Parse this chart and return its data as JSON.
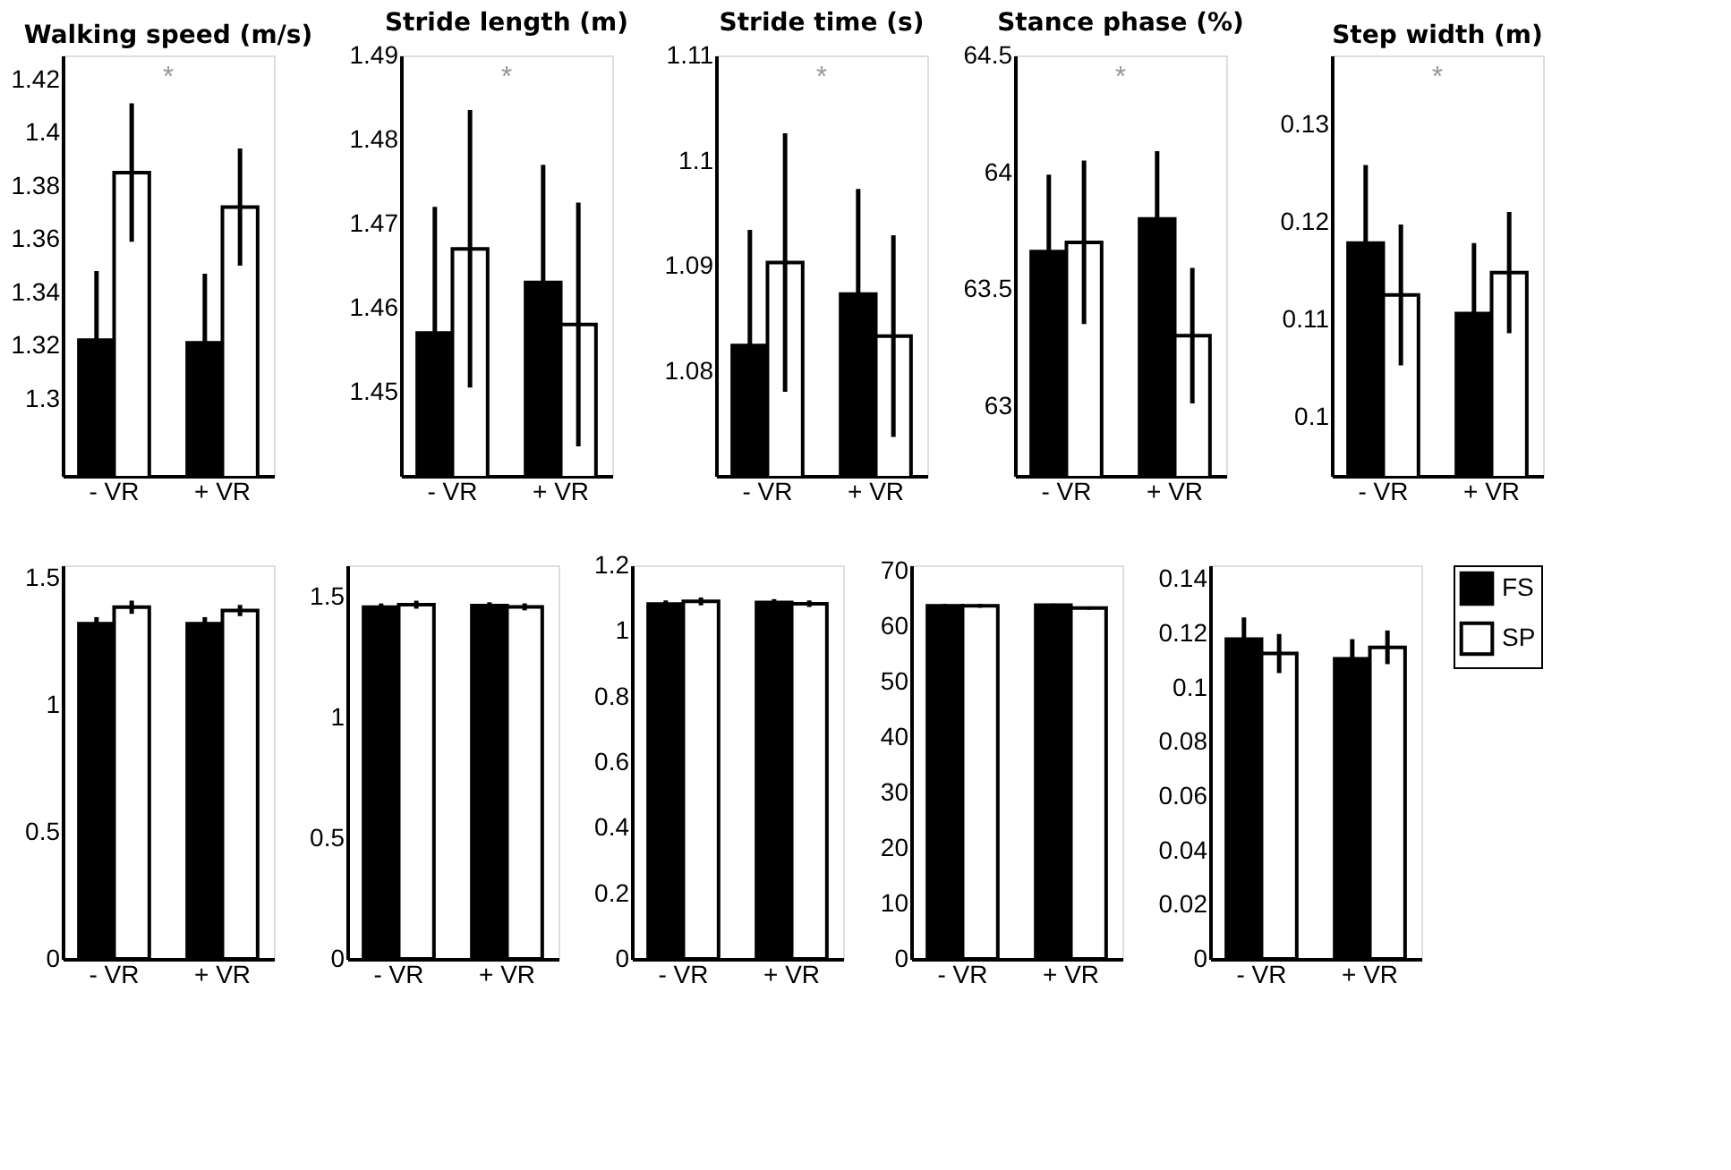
{
  "chart_data": [
    {
      "type": "bar",
      "title": "Walking speed (m/s)",
      "categories": [
        "- VR",
        "+ VR"
      ],
      "annotations": [
        "*"
      ],
      "ylim": [
        1.271,
        1.429
      ],
      "yticks": [
        1.3,
        1.32,
        1.34,
        1.36,
        1.38,
        1.4,
        1.42
      ],
      "series": [
        {
          "color": "#000000",
          "values": [
            1.322,
            1.321
          ],
          "errors": [
            0.026,
            0.026
          ]
        },
        {
          "color": "#ffffff",
          "values": [
            1.385,
            1.372
          ],
          "errors": [
            0.026,
            0.022
          ]
        }
      ]
    },
    {
      "type": "bar",
      "title": "Stride length (m)",
      "categories": [
        "- VR",
        "+ VR"
      ],
      "annotations": [
        "*"
      ],
      "ylim": [
        1.44,
        1.49
      ],
      "yticks": [
        1.45,
        1.46,
        1.47,
        1.48,
        1.49
      ],
      "series": [
        {
          "color": "#000000",
          "values": [
            1.457,
            1.463
          ],
          "errors": [
            0.015,
            0.014
          ]
        },
        {
          "color": "#ffffff",
          "values": [
            1.467,
            1.458
          ],
          "errors": [
            0.0165,
            0.0145
          ]
        }
      ]
    },
    {
      "type": "bar",
      "title": "Stride time (s)",
      "categories": [
        "- VR",
        "+ VR"
      ],
      "annotations": [
        "*"
      ],
      "ylim": [
        1.07,
        1.11
      ],
      "yticks": [
        1.08,
        1.09,
        1.1,
        1.11
      ],
      "series": [
        {
          "color": "#000000",
          "values": [
            1.0824,
            1.0873
          ],
          "errors": [
            0.011,
            0.01
          ]
        },
        {
          "color": "#ffffff",
          "values": [
            1.0903,
            1.0833
          ],
          "errors": [
            0.0123,
            0.0096
          ]
        }
      ]
    },
    {
      "type": "bar",
      "title": "Stance phase (%)",
      "categories": [
        "- VR",
        "+ VR"
      ],
      "annotations": [
        "*"
      ],
      "ylim": [
        62.7,
        64.5
      ],
      "yticks": [
        63,
        63.5,
        64,
        64.5
      ],
      "series": [
        {
          "color": "#000000",
          "values": [
            63.66,
            63.8
          ],
          "errors": [
            0.33,
            0.29
          ]
        },
        {
          "color": "#ffffff",
          "values": [
            63.7,
            63.3
          ],
          "errors": [
            0.35,
            0.29
          ]
        }
      ]
    },
    {
      "type": "bar",
      "title": "Step width (m)",
      "categories": [
        "- VR",
        "+ VR"
      ],
      "annotations": [
        "*"
      ],
      "ylim": [
        0.094,
        0.137
      ],
      "yticks": [
        0.1,
        0.11,
        0.12,
        0.13
      ],
      "series": [
        {
          "color": "#000000",
          "values": [
            0.1178,
            0.1106
          ],
          "errors": [
            0.008,
            0.0072
          ]
        },
        {
          "color": "#ffffff",
          "values": [
            0.1125,
            0.1148
          ],
          "errors": [
            0.0072,
            0.0062
          ]
        }
      ]
    },
    {
      "type": "bar",
      "categories": [
        "- VR",
        "+ VR"
      ],
      "ylim": [
        0,
        1.55
      ],
      "yticks": [
        0,
        0.5,
        1,
        1.5
      ],
      "series": [
        {
          "color": "#000000",
          "values": [
            1.32,
            1.32
          ],
          "errors": [
            0.026,
            0.026
          ]
        },
        {
          "color": "#ffffff",
          "values": [
            1.385,
            1.372
          ],
          "errors": [
            0.026,
            0.022
          ]
        }
      ]
    },
    {
      "type": "bar",
      "categories": [
        "- VR",
        "+ VR"
      ],
      "ylim": [
        0,
        1.63
      ],
      "yticks": [
        0,
        0.5,
        1,
        1.5
      ],
      "series": [
        {
          "color": "#000000",
          "values": [
            1.457,
            1.463
          ],
          "errors": [
            0.015,
            0.014
          ]
        },
        {
          "color": "#ffffff",
          "values": [
            1.467,
            1.458
          ],
          "errors": [
            0.0165,
            0.0145
          ]
        }
      ]
    },
    {
      "type": "bar",
      "categories": [
        "- VR",
        "+ VR"
      ],
      "ylim": [
        0,
        1.2
      ],
      "yticks": [
        0,
        0.2,
        0.4,
        0.6,
        0.8,
        1,
        1.2
      ],
      "series": [
        {
          "color": "#000000",
          "values": [
            1.082,
            1.087
          ],
          "errors": [
            0.011,
            0.01
          ]
        },
        {
          "color": "#ffffff",
          "values": [
            1.09,
            1.083
          ],
          "errors": [
            0.012,
            0.01
          ]
        }
      ]
    },
    {
      "type": "bar",
      "categories": [
        "- VR",
        "+ VR"
      ],
      "ylim": [
        0,
        71
      ],
      "yticks": [
        0,
        10,
        20,
        30,
        40,
        50,
        60,
        70
      ],
      "series": [
        {
          "color": "#000000",
          "values": [
            63.7,
            63.8
          ],
          "errors": [
            0.33,
            0.29
          ]
        },
        {
          "color": "#ffffff",
          "values": [
            63.7,
            63.3
          ],
          "errors": [
            0.35,
            0.29
          ]
        }
      ]
    },
    {
      "type": "bar",
      "categories": [
        "- VR",
        "+ VR"
      ],
      "ylim": [
        0,
        0.145
      ],
      "yticks": [
        0,
        0.02,
        0.04,
        0.06,
        0.08,
        0.1,
        0.12,
        0.14
      ],
      "legend": "right",
      "series": [
        {
          "name": "FS",
          "color": "#000000",
          "values": [
            0.1178,
            0.1106
          ],
          "errors": [
            0.008,
            0.0072
          ]
        },
        {
          "name": "SP",
          "color": "#ffffff",
          "values": [
            0.1125,
            0.1148
          ],
          "errors": [
            0.0072,
            0.0062
          ]
        }
      ]
    }
  ]
}
